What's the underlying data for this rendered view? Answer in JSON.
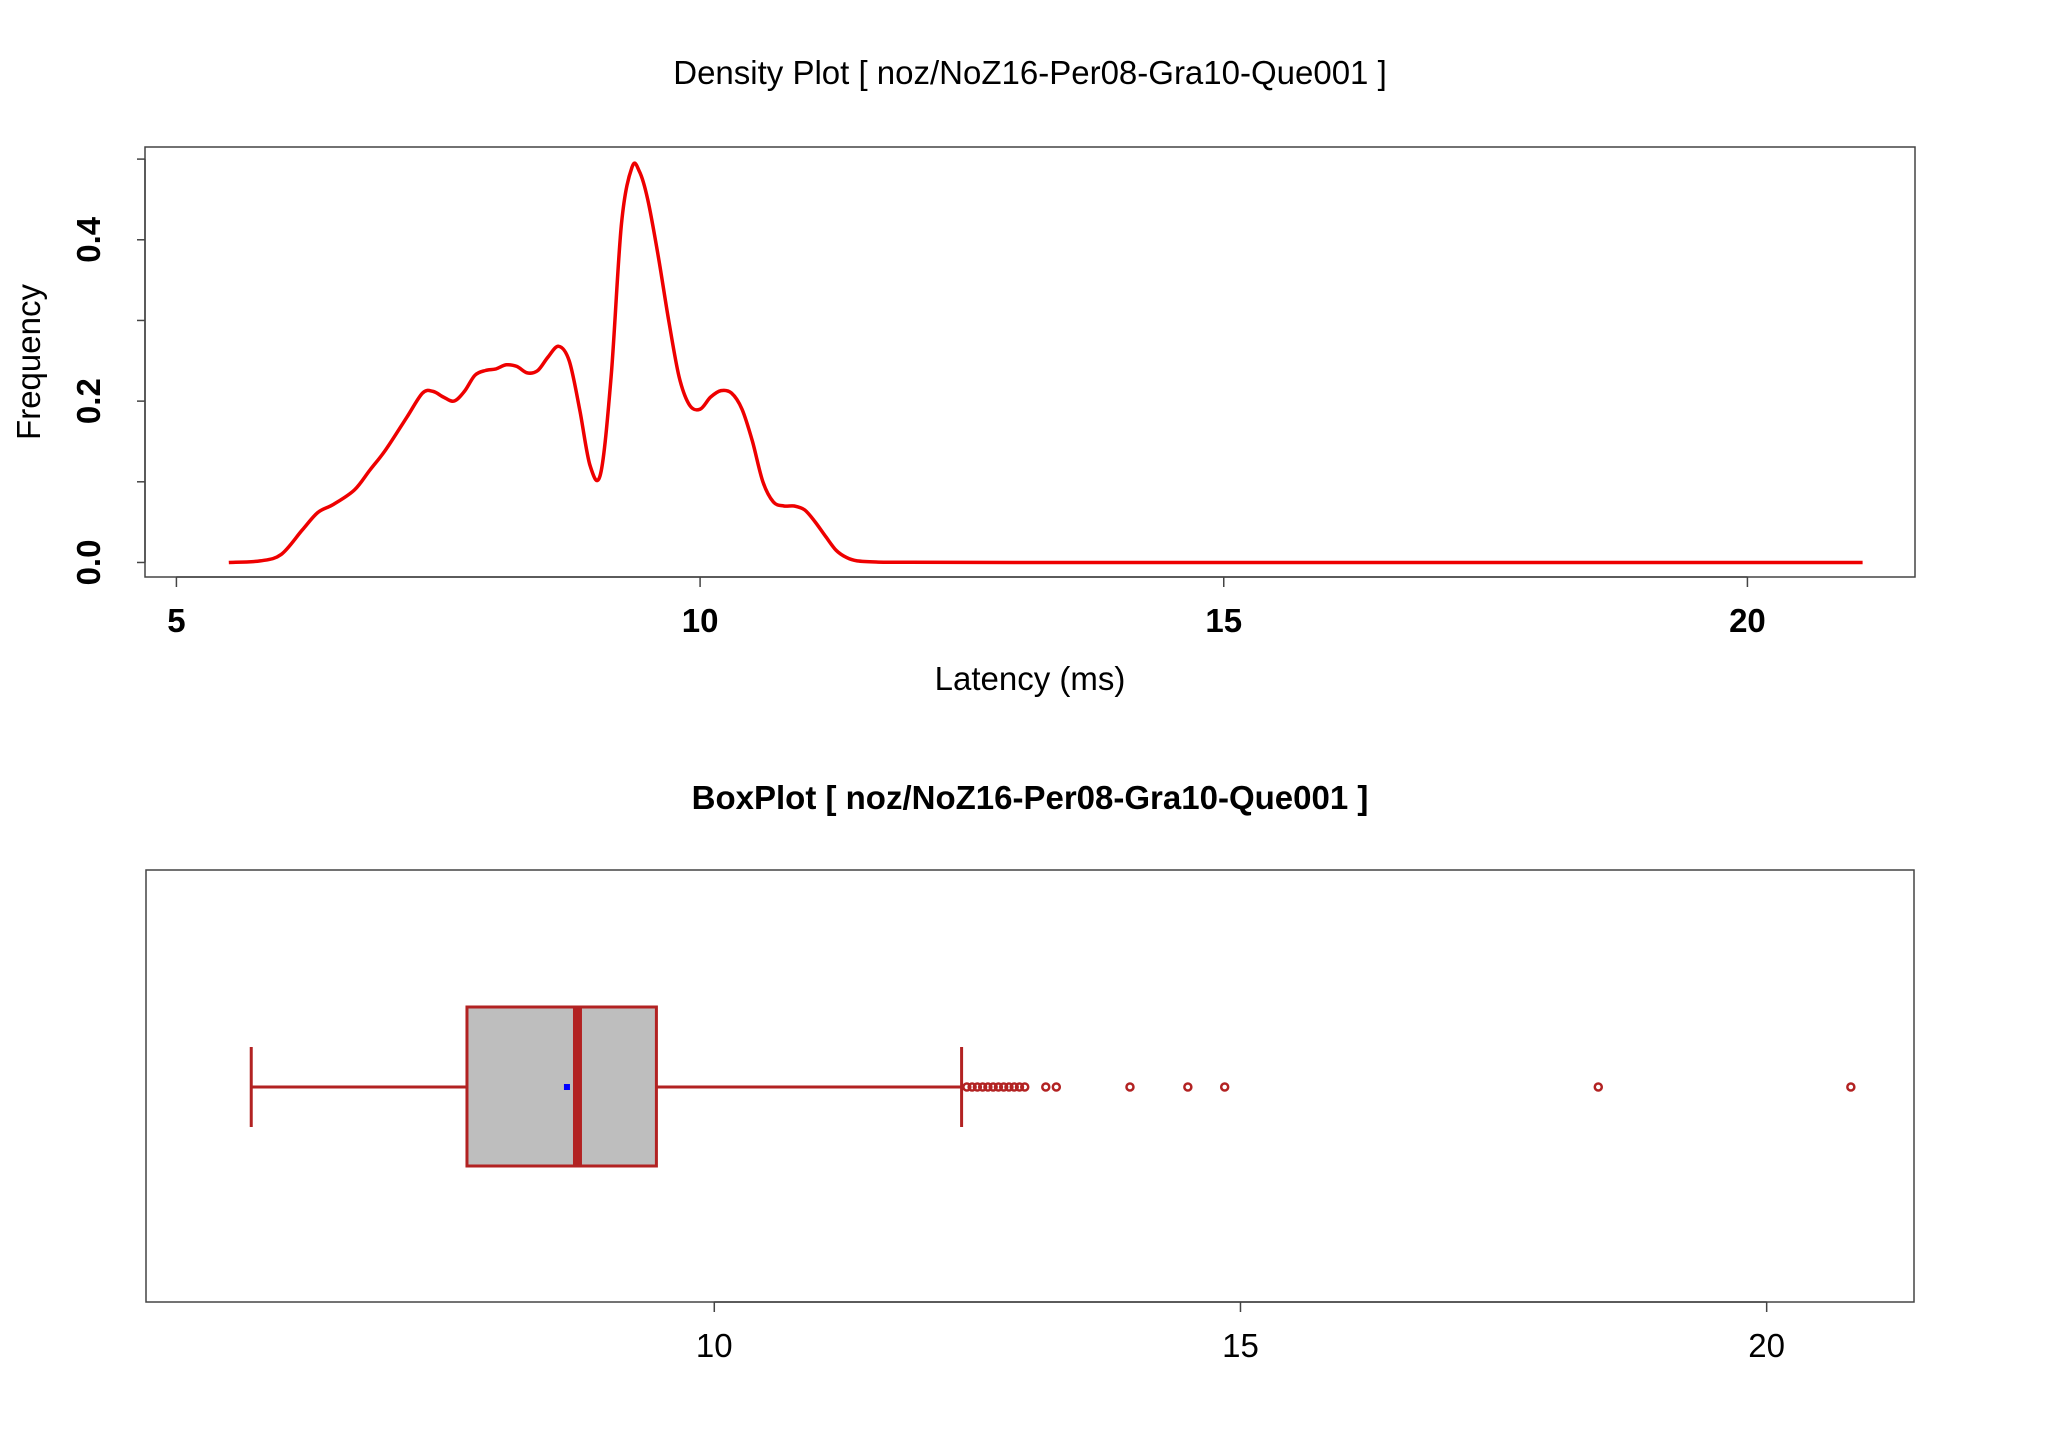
{
  "chart_data": [
    {
      "type": "line",
      "title": "Density Plot [ noz/NoZ16-Per08-Gra10-Que001 ]",
      "xlabel": "Latency (ms)",
      "ylabel": "Frequency",
      "xlim": [
        4.7,
        21.6
      ],
      "ylim": [
        -0.018,
        0.515
      ],
      "x_ticks": [
        5,
        10,
        15,
        20
      ],
      "x_tick_labels": [
        "5",
        "10",
        "15",
        "20"
      ],
      "y_ticks": [
        0.0,
        0.2,
        0.4
      ],
      "y_tick_labels": [
        "0.0",
        "0.2",
        "0.4"
      ],
      "y_minor_ticks": [
        0.1,
        0.3,
        0.5
      ],
      "grid": false,
      "line_color": "#ee0000",
      "series": [
        {
          "x": [
            5.5,
            5.8,
            6.0,
            6.2,
            6.35,
            6.5,
            6.7,
            6.85,
            7.0,
            7.2,
            7.35,
            7.45,
            7.55,
            7.65,
            7.75,
            7.85,
            7.95,
            8.05,
            8.15,
            8.25,
            8.35,
            8.45,
            8.55,
            8.65,
            8.75,
            8.85,
            8.95,
            9.05,
            9.15,
            9.25,
            9.35,
            9.42,
            9.5,
            9.6,
            9.7,
            9.8,
            9.9,
            10.0,
            10.1,
            10.2,
            10.3,
            10.4,
            10.5,
            10.6,
            10.7,
            10.8,
            10.9,
            11.0,
            11.1,
            11.2,
            11.3,
            11.4,
            11.5,
            11.7,
            12.0,
            13.0,
            15.0,
            17.0,
            19.0,
            21.1
          ],
          "y": [
            0.0,
            0.002,
            0.01,
            0.04,
            0.062,
            0.072,
            0.09,
            0.115,
            0.14,
            0.18,
            0.21,
            0.212,
            0.205,
            0.2,
            0.212,
            0.232,
            0.238,
            0.24,
            0.245,
            0.243,
            0.235,
            0.238,
            0.255,
            0.268,
            0.25,
            0.19,
            0.12,
            0.11,
            0.23,
            0.42,
            0.49,
            0.485,
            0.45,
            0.38,
            0.3,
            0.23,
            0.195,
            0.19,
            0.205,
            0.213,
            0.21,
            0.19,
            0.15,
            0.1,
            0.075,
            0.07,
            0.07,
            0.065,
            0.05,
            0.032,
            0.015,
            0.006,
            0.002,
            0.0005,
            0.0002,
            0.0,
            0.0,
            0.0,
            0.0,
            0.0
          ]
        }
      ]
    },
    {
      "type": "box",
      "title": "BoxPlot [ noz/NoZ16-Per08-Gra10-Que001 ]",
      "xlim": [
        4.6,
        21.4
      ],
      "x_ticks": [
        10,
        15,
        20
      ],
      "x_tick_labels": [
        "10",
        "15",
        "20"
      ],
      "box_fill": "#bebebe",
      "line_color": "#b22222",
      "mean_color": "#0000ff",
      "whisker_low": 5.6,
      "q1": 7.65,
      "median": 8.7,
      "q3": 9.45,
      "whisker_high": 12.35,
      "mean": 8.6,
      "outliers": [
        12.4,
        12.45,
        12.5,
        12.55,
        12.6,
        12.65,
        12.7,
        12.75,
        12.8,
        12.85,
        12.9,
        12.95,
        13.15,
        13.25,
        13.95,
        14.5,
        14.85,
        18.4,
        20.8
      ]
    }
  ]
}
